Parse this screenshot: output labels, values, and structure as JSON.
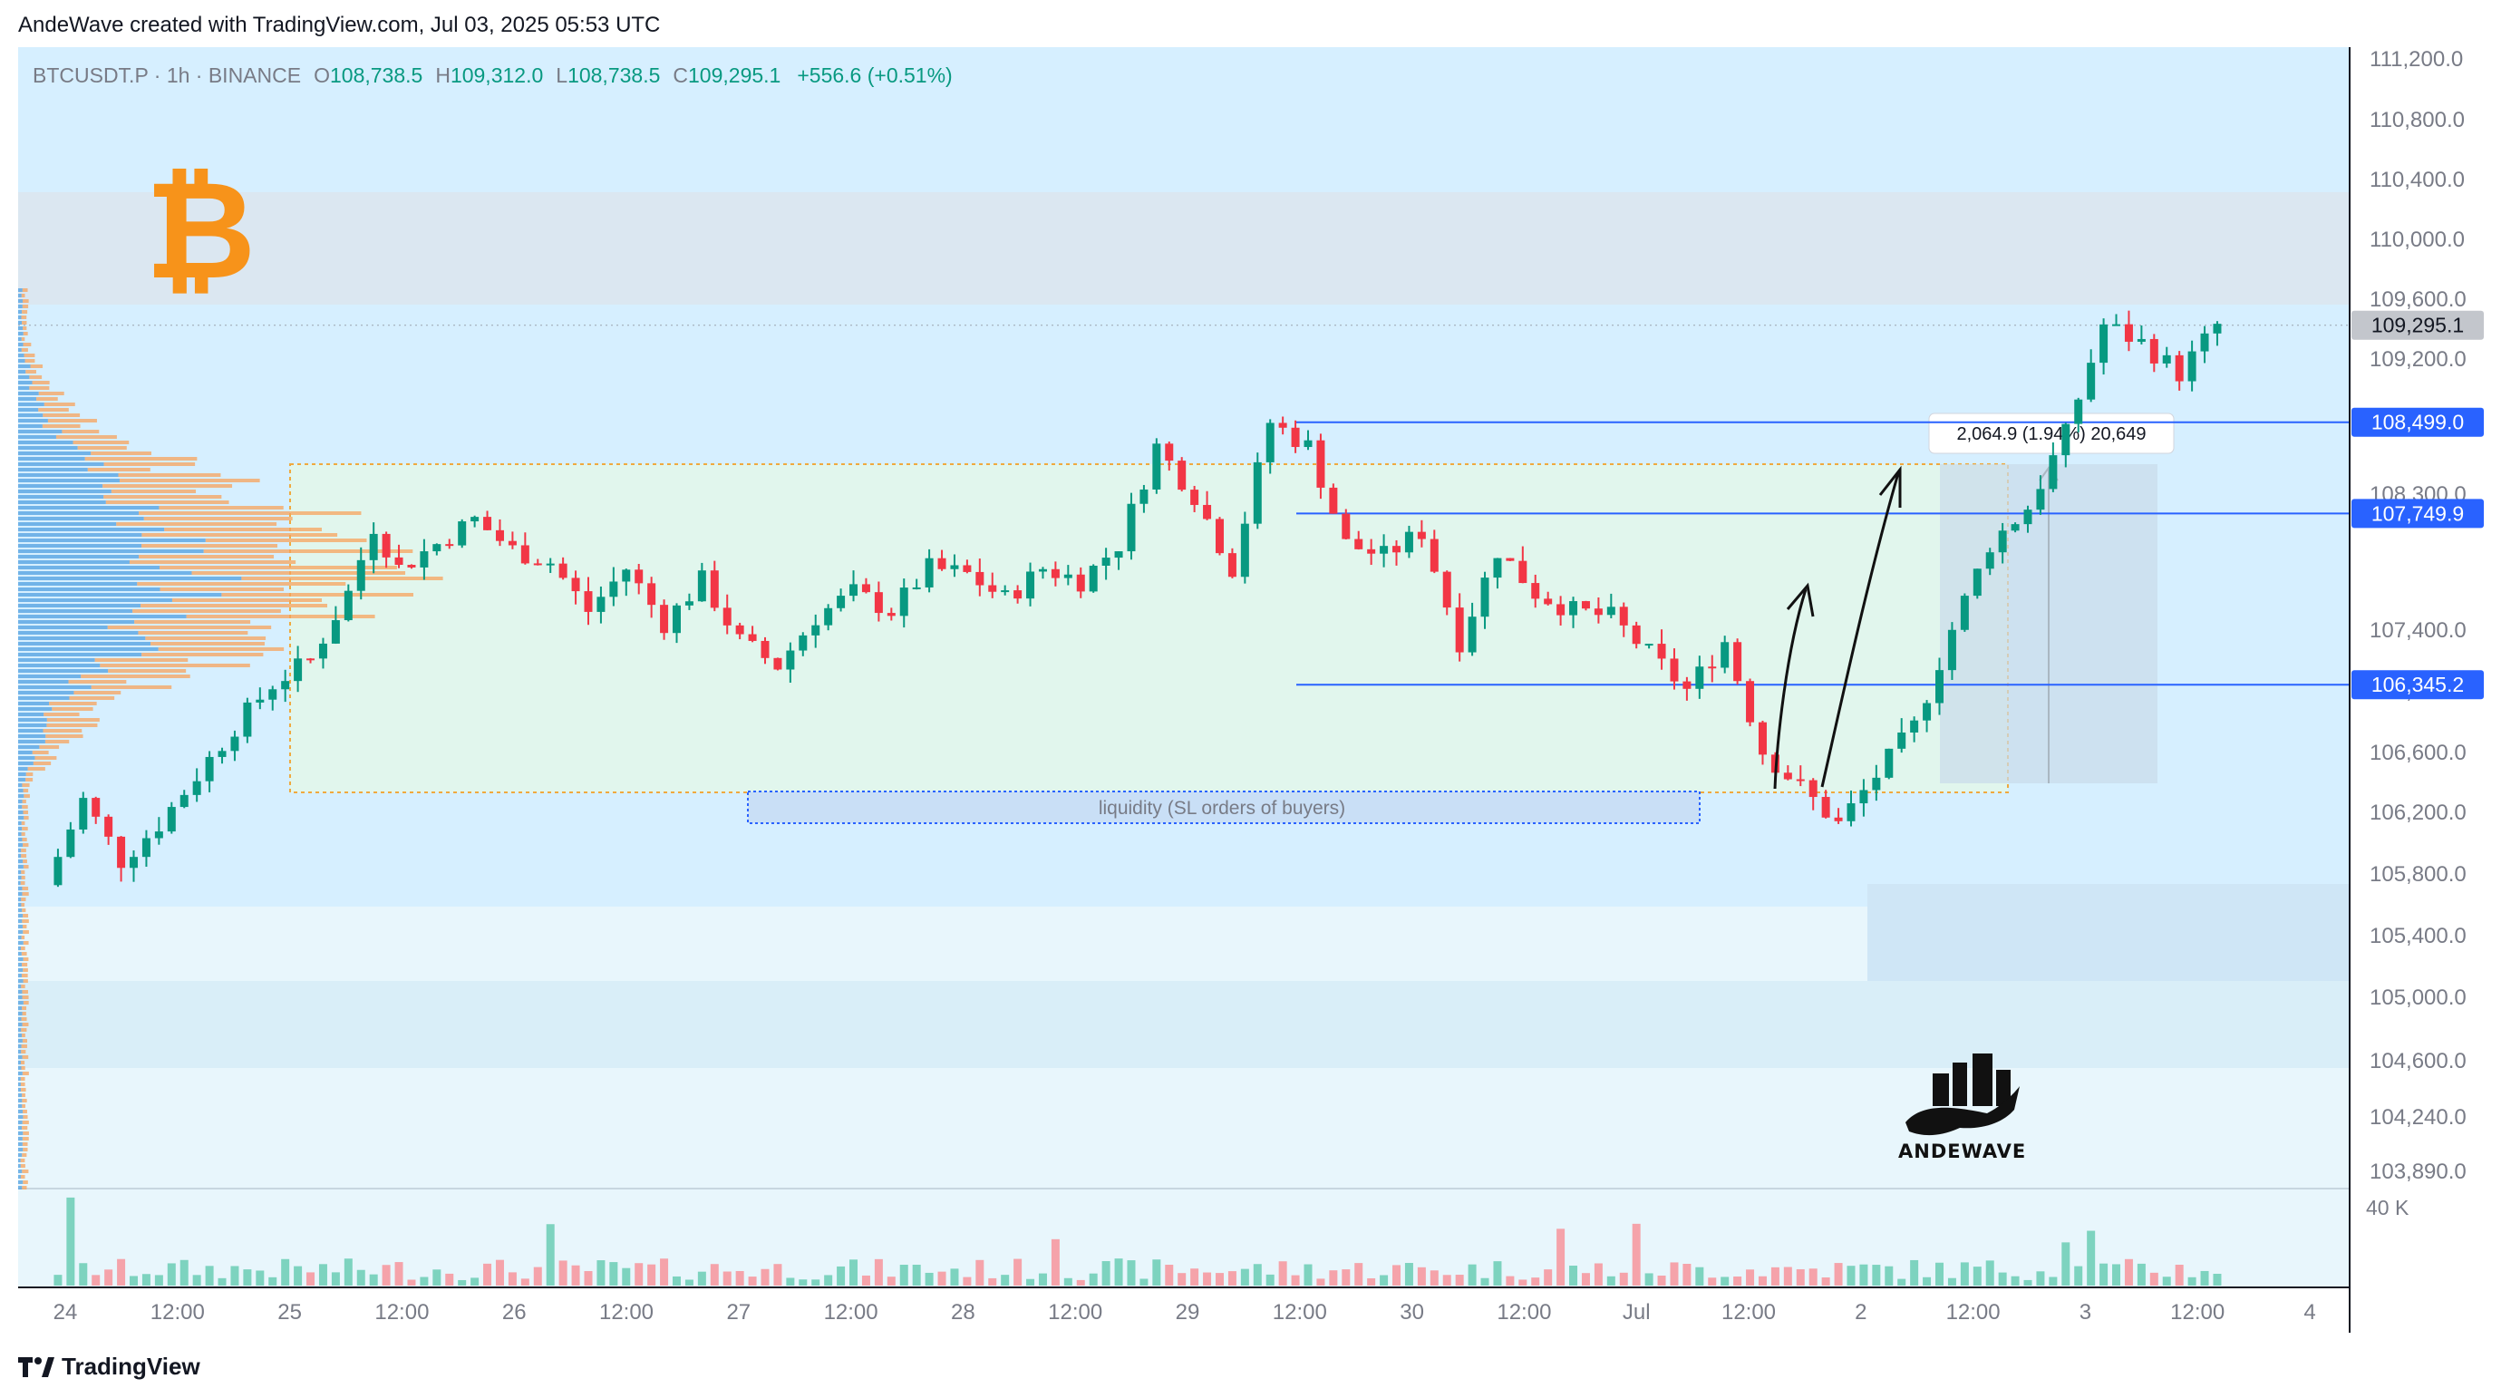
{
  "header": {
    "text": "AndeWave created with TradingView.com, Jul 03, 2025 05:53 UTC"
  },
  "legend": {
    "symbol": "BTCUSDT.P · 1h · BINANCE",
    "open_label": "O",
    "open": "108,738.5",
    "high_label": "H",
    "high": "109,312.0",
    "low_label": "L",
    "low": "108,738.5",
    "close_label": "C",
    "close": "109,295.1",
    "change": "+556.6 (+0.51%)"
  },
  "footer": {
    "brand": "TradingView"
  },
  "logo": {
    "symbol": "₿",
    "icon": "bitcoin-icon"
  },
  "watermark": {
    "brand": "ANDEWAVE",
    "icon": "bull-city-icon"
  },
  "colors": {
    "up": "#089981",
    "down": "#f23645",
    "accent": "#2962ff",
    "bitcoin": "#f7931a",
    "volume_profile_blue": "#4f9fe0",
    "volume_profile_orange": "#f7a35c"
  },
  "chart_data": {
    "type": "candlestick",
    "symbol": "BTCUSDT.P",
    "interval": "1h",
    "exchange": "BINANCE",
    "ylim": [
      103700,
      111300
    ],
    "y_ticks": [
      "111,200.0",
      "110,800.0",
      "110,400.0",
      "110,000.0",
      "109,600.0",
      "109,200.0",
      "108,800.0",
      "108,300.0",
      "107,400.0",
      "107,000.0",
      "106,600.0",
      "106,200.0",
      "105,800.0",
      "105,400.0",
      "105,000.0",
      "104,600.0",
      "104,240.0",
      "103,890.0"
    ],
    "x_ticks": [
      "24",
      "12:00",
      "25",
      "12:00",
      "26",
      "12:00",
      "27",
      "12:00",
      "28",
      "12:00",
      "29",
      "12:00",
      "30",
      "12:00",
      "Jul",
      "12:00",
      "2",
      "12:00",
      "3",
      "12:00",
      "4"
    ],
    "price_labels": [
      {
        "value": 109295.1,
        "text": "109,295.1",
        "kind": "current"
      },
      {
        "value": 108499.0,
        "text": "108,499.0",
        "kind": "line"
      },
      {
        "value": 107749.9,
        "text": "107,749.9",
        "kind": "line"
      },
      {
        "value": 106345.2,
        "text": "106,345.2",
        "kind": "line"
      }
    ],
    "volume_label": "40 K",
    "measure_label": "2,064.9 (1.94%) 20,649",
    "annotations": [
      "liquidity (SL orders of buyers)"
    ],
    "price_path": [
      [
        0,
        104700
      ],
      [
        3,
        105400
      ],
      [
        6,
        104900
      ],
      [
        9,
        105200
      ],
      [
        12,
        105600
      ],
      [
        15,
        106000
      ],
      [
        18,
        106350
      ],
      [
        21,
        106550
      ],
      [
        24,
        107100
      ],
      [
        26,
        107650
      ],
      [
        28,
        107300
      ],
      [
        31,
        107500
      ],
      [
        34,
        107700
      ],
      [
        37,
        107450
      ],
      [
        40,
        107350
      ],
      [
        43,
        106950
      ],
      [
        46,
        107300
      ],
      [
        49,
        106850
      ],
      [
        52,
        107200
      ],
      [
        55,
        106700
      ],
      [
        58,
        106500
      ],
      [
        61,
        106900
      ],
      [
        64,
        107100
      ],
      [
        67,
        106950
      ],
      [
        70,
        107300
      ],
      [
        73,
        107250
      ],
      [
        76,
        107050
      ],
      [
        79,
        107300
      ],
      [
        82,
        107200
      ],
      [
        85,
        107500
      ],
      [
        88,
        108300
      ],
      [
        91,
        107900
      ],
      [
        94,
        107300
      ],
      [
        97,
        108500
      ],
      [
        100,
        108300
      ],
      [
        103,
        107500
      ],
      [
        106,
        107400
      ],
      [
        109,
        107600
      ],
      [
        112,
        106700
      ],
      [
        115,
        107450
      ],
      [
        118,
        107100
      ],
      [
        121,
        106950
      ],
      [
        124,
        106900
      ],
      [
        127,
        106600
      ],
      [
        130,
        106300
      ],
      [
        133,
        106700
      ],
      [
        136,
        105800
      ],
      [
        139,
        105500
      ],
      [
        142,
        105200
      ],
      [
        145,
        105600
      ],
      [
        148,
        106000
      ],
      [
        151,
        106800
      ],
      [
        154,
        107500
      ],
      [
        157,
        107800
      ],
      [
        160,
        108400
      ],
      [
        163,
        109300
      ],
      [
        166,
        109150
      ],
      [
        169,
        108900
      ],
      [
        172,
        109295
      ]
    ],
    "series": [
      {
        "name": "BTCUSDT.P",
        "type": "candlestick"
      }
    ]
  }
}
